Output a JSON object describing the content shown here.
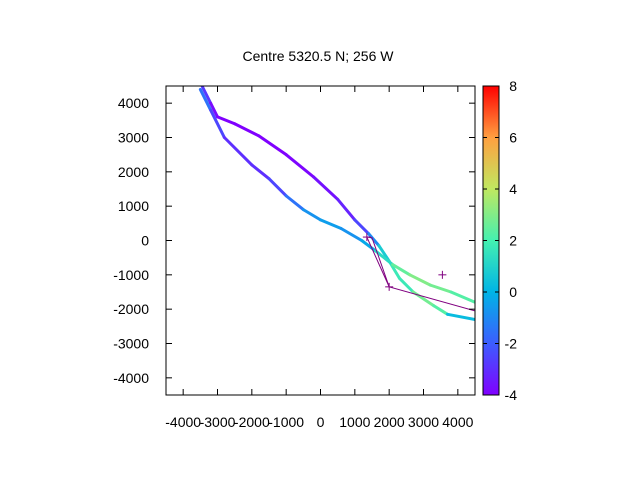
{
  "chart_data": {
    "type": "line",
    "title": "Centre 5320.5 N; 256  W",
    "xlabel": "",
    "ylabel": "",
    "xlim": [
      -4500,
      4500
    ],
    "ylim": [
      -4500,
      4500
    ],
    "x_ticks": [
      -4000,
      -3000,
      -2000,
      -1000,
      0,
      1000,
      2000,
      3000,
      4000
    ],
    "x_tick_labels": [
      "-4000",
      "-3000",
      "-2000",
      "-1000",
      "0",
      "1000",
      "2000",
      "3000",
      "4000"
    ],
    "y_ticks": [
      -4000,
      -3000,
      -2000,
      -1000,
      0,
      1000,
      2000,
      3000,
      4000
    ],
    "y_tick_labels": [
      "-4000",
      "-3000",
      "-2000",
      "-1000",
      "0",
      "1000",
      "2000",
      "3000",
      "4000"
    ],
    "grid": false,
    "colorbar": {
      "range": [
        -4,
        8
      ],
      "ticks": [
        -4,
        -2,
        0,
        2,
        4,
        6,
        8
      ],
      "tick_labels": [
        "-4",
        "-2",
        "0",
        "2",
        "4",
        "6",
        "8"
      ],
      "colormap": "rainbow"
    },
    "series": [
      {
        "style": "colored-track",
        "points": [
          {
            "x": -3450,
            "y": 4500,
            "c": -2.0
          },
          {
            "x": -3200,
            "y": 4000,
            "c": -3.5
          },
          {
            "x": -3000,
            "y": 3600,
            "c": -4.0
          },
          {
            "x": -2500,
            "y": 3400,
            "c": -4.0
          },
          {
            "x": -1800,
            "y": 3050,
            "c": -4.0
          },
          {
            "x": -1000,
            "y": 2500,
            "c": -4.0
          },
          {
            "x": -200,
            "y": 1850,
            "c": -3.8
          },
          {
            "x": 500,
            "y": 1200,
            "c": -3.5
          },
          {
            "x": 1000,
            "y": 600,
            "c": -3.0
          },
          {
            "x": 1400,
            "y": 200,
            "c": -2.0
          },
          {
            "x": 1700,
            "y": -150,
            "c": 0.0
          },
          {
            "x": 2000,
            "y": -600,
            "c": 1.5
          },
          {
            "x": 2300,
            "y": -1100,
            "c": 2.0
          },
          {
            "x": 2700,
            "y": -1500,
            "c": 1.5
          },
          {
            "x": 3300,
            "y": -1900,
            "c": 4.0
          },
          {
            "x": 3700,
            "y": -2150,
            "c": 0.5
          },
          {
            "x": 4500,
            "y": -2300,
            "c": 0.0
          }
        ]
      },
      {
        "style": "colored-track",
        "points": [
          {
            "x": -3500,
            "y": 4400,
            "c": -1.0
          },
          {
            "x": -3200,
            "y": 3800,
            "c": -2.0
          },
          {
            "x": -2800,
            "y": 3000,
            "c": -3.0
          },
          {
            "x": -2000,
            "y": 2200,
            "c": -3.0
          },
          {
            "x": -1500,
            "y": 1800,
            "c": -3.0
          },
          {
            "x": -1000,
            "y": 1300,
            "c": -2.0
          },
          {
            "x": -500,
            "y": 900,
            "c": -1.0
          },
          {
            "x": 0,
            "y": 600,
            "c": -0.5
          },
          {
            "x": 600,
            "y": 350,
            "c": -0.5
          },
          {
            "x": 1200,
            "y": 0,
            "c": -1.0
          },
          {
            "x": 1600,
            "y": -300,
            "c": 0.5
          },
          {
            "x": 2100,
            "y": -700,
            "c": 2.0
          },
          {
            "x": 2600,
            "y": -1000,
            "c": 3.0
          },
          {
            "x": 3200,
            "y": -1300,
            "c": 3.0
          },
          {
            "x": 3800,
            "y": -1500,
            "c": 2.5
          },
          {
            "x": 4500,
            "y": -1800,
            "c": 2.0
          }
        ]
      },
      {
        "style": "purple-line",
        "color": "#800080",
        "points": [
          {
            "x": 1350,
            "y": 100
          },
          {
            "x": 1500,
            "y": 80
          },
          {
            "x": 2000,
            "y": -1350
          },
          {
            "x": 4500,
            "y": -2050
          }
        ]
      },
      {
        "style": "purple-line",
        "color": "#800080",
        "points": [
          {
            "x": 1350,
            "y": 100
          },
          {
            "x": 2000,
            "y": -1350
          }
        ]
      }
    ],
    "markers": [
      {
        "x": 1350,
        "y": 100,
        "symbol": "+"
      },
      {
        "x": 2000,
        "y": -1350,
        "symbol": "+"
      },
      {
        "x": 3550,
        "y": -1000,
        "symbol": "+"
      }
    ]
  }
}
